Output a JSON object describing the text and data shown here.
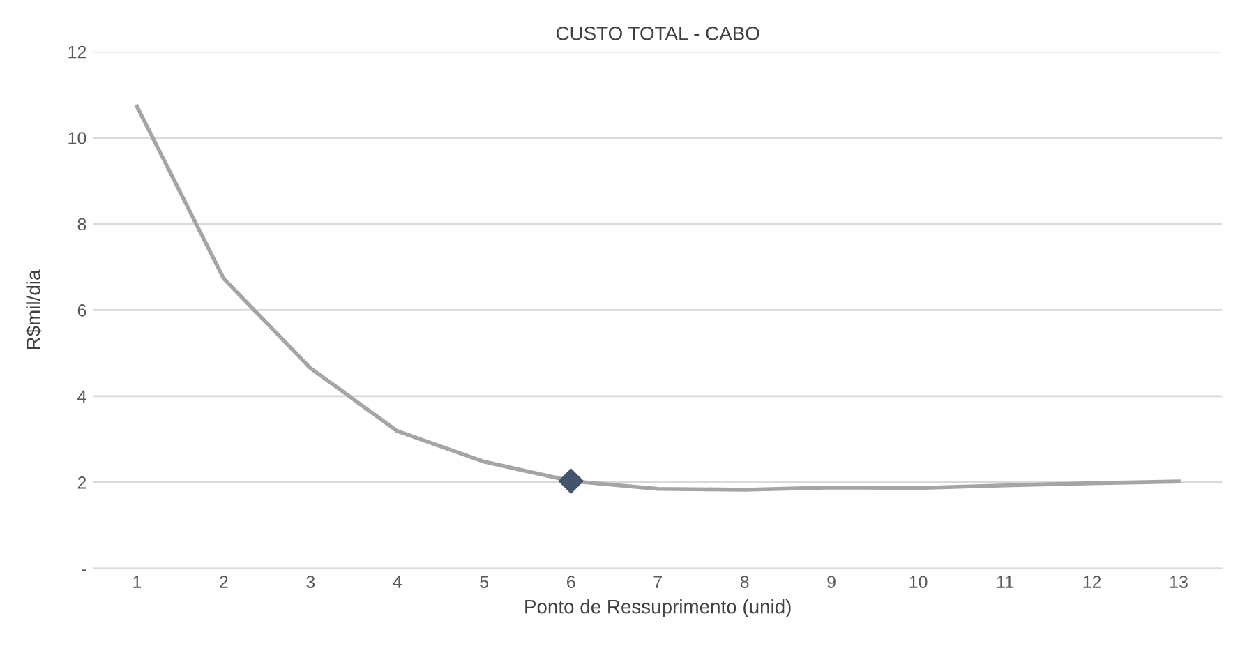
{
  "chart_data": {
    "type": "line",
    "title": "CUSTO TOTAL - CABO",
    "xlabel": "Ponto de Ressuprimento (unid)",
    "ylabel": "R$mil/dia",
    "categories": [
      "1",
      "2",
      "3",
      "4",
      "5",
      "6",
      "7",
      "8",
      "9",
      "10",
      "11",
      "12",
      "13"
    ],
    "series": [
      {
        "color": "#a5a5a5",
        "marker": "none",
        "values": [
          10.73,
          6.73,
          4.65,
          3.19,
          2.48,
          2.03,
          1.85,
          1.83,
          1.88,
          1.87,
          1.93,
          1.98,
          2.02
        ]
      },
      {
        "type": "scatter",
        "color": "#44546a",
        "marker": "diamond",
        "x": [
          "6"
        ],
        "values": [
          2.03
        ]
      }
    ],
    "ylim": [
      0,
      12
    ],
    "yticks": [
      {
        "value": 0,
        "label": "-"
      },
      2,
      4,
      6,
      8,
      10,
      12
    ],
    "grid": "y"
  }
}
